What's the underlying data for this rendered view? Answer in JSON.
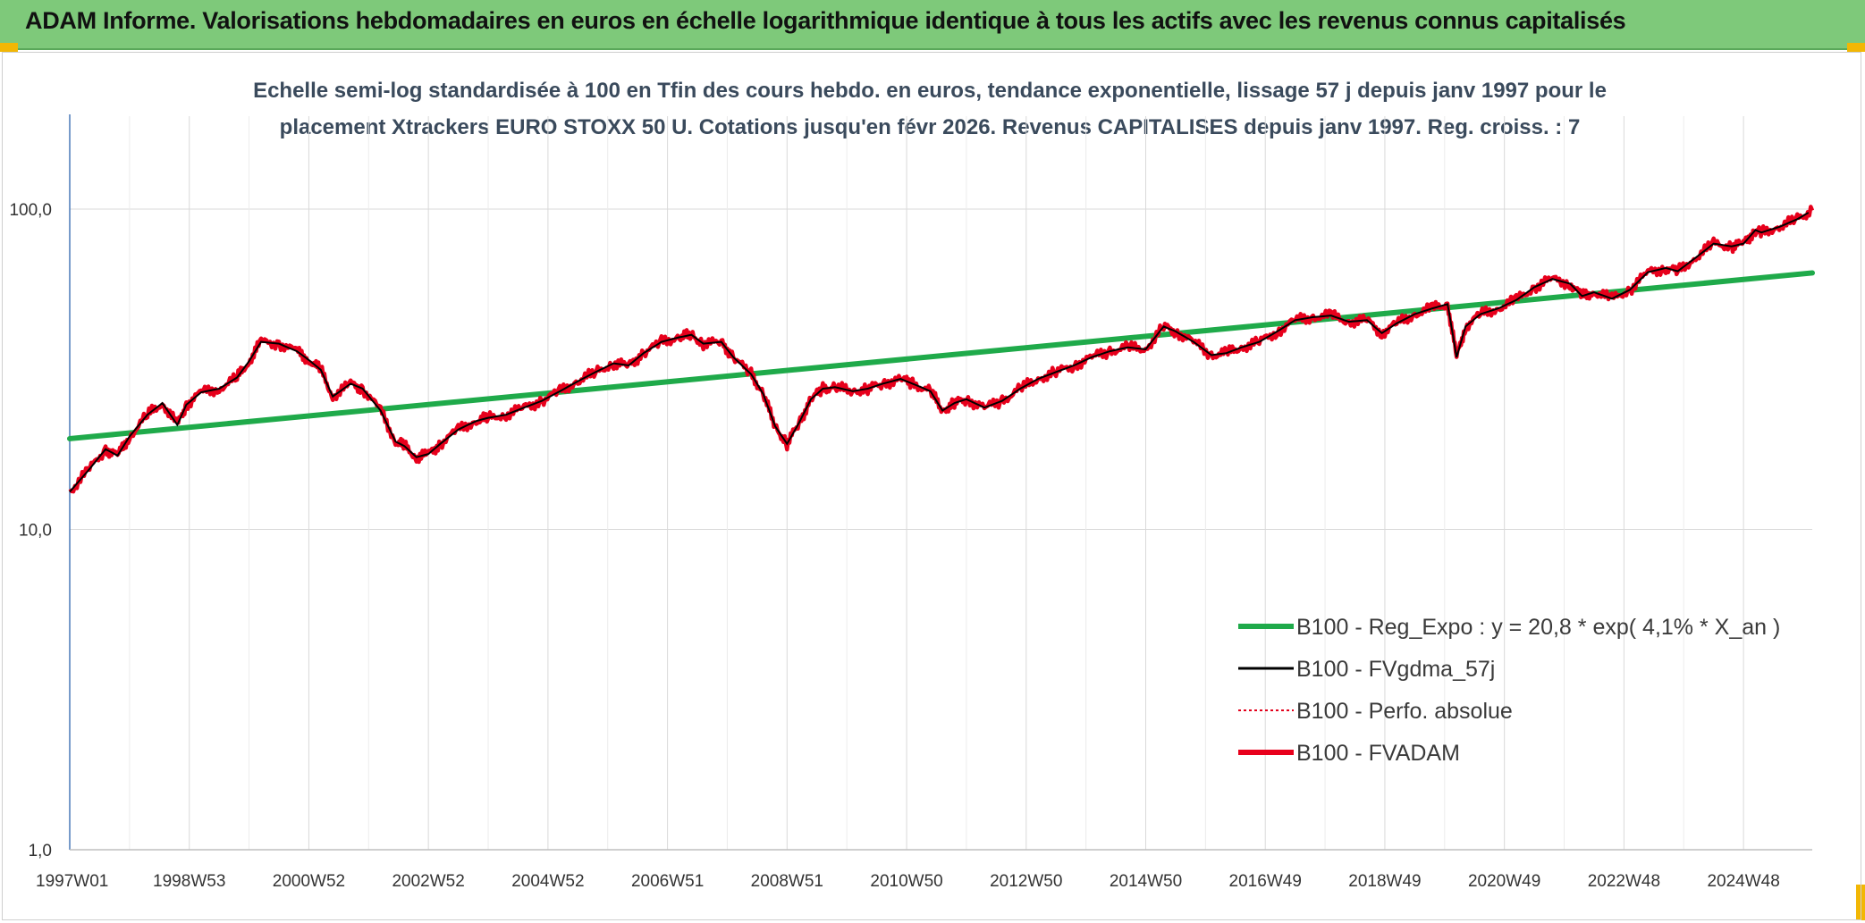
{
  "header": {
    "title": "ADAM Informe. Valorisations hebdomadaires en euros en échelle logarithmique identique à tous les actifs avec les revenus connus capitalisés"
  },
  "colors": {
    "header_bg": "#7ec97a",
    "reg_expo": "#1faa4a",
    "fvgdma": "#000000",
    "perfo": "#e3001b",
    "fvadam": "#e8001c",
    "grid": "#d9d9d9",
    "axis": "#4a7ab8"
  },
  "chart_data": {
    "type": "line",
    "subtitle_line1": "Echelle semi-log standardisée à 100 en Tfin des cours hebdo. en euros, tendance exponentielle, lissage 57 j depuis janv 1997 pour le",
    "subtitle_line2": "placement Xtrackers EURO STOXX 50 U. Cotations jusqu'en févr 2026. Revenus CAPITALISES depuis janv 1997. Reg. croiss. : 7",
    "y_scale": "log",
    "ylim": [
      1,
      100
    ],
    "xlim": [
      1997.0,
      2026.15
    ],
    "grid": true,
    "legend_position": "lower-right",
    "y_ticks": [
      "1,0",
      "10,0",
      "100,0"
    ],
    "x_ticks": [
      "1997W01",
      "1998W53",
      "2000W52",
      "2002W52",
      "2004W52",
      "2006W51",
      "2008W51",
      "2010W50",
      "2012W50",
      "2014W50",
      "2016W49",
      "2018W49",
      "2020W49",
      "2022W48",
      "2024W48"
    ],
    "series": [
      {
        "name": "B100 - Reg_Expo : y = 20,8 * exp( 4,1% *  X_an )",
        "key": "reg",
        "x": [
          1997.0,
          2026.15
        ],
        "y": [
          19.2,
          63.2
        ]
      },
      {
        "name": "B100 - FVgdma_57j",
        "key": "smooth"
      },
      {
        "name": "B100 - Perfo. absolue",
        "key": "perfo"
      },
      {
        "name": "B100 - FVADAM",
        "key": "fvadam",
        "x": [
          1997.0,
          1997.3,
          1997.6,
          1997.8,
          1998.0,
          1998.3,
          1998.55,
          1998.8,
          1998.95,
          1999.2,
          1999.5,
          1999.8,
          2000.0,
          2000.2,
          2000.5,
          2000.8,
          2001.0,
          2001.2,
          2001.4,
          2001.7,
          2001.9,
          2002.2,
          2002.45,
          2002.6,
          2002.8,
          2003.0,
          2003.2,
          2003.5,
          2003.8,
          2004.0,
          2004.3,
          2004.6,
          2004.9,
          2005.2,
          2005.5,
          2005.8,
          2006.1,
          2006.35,
          2006.6,
          2006.9,
          2007.2,
          2007.4,
          2007.6,
          2007.9,
          2008.1,
          2008.4,
          2008.6,
          2008.8,
          2009.0,
          2009.2,
          2009.4,
          2009.6,
          2009.8,
          2010.1,
          2010.35,
          2010.6,
          2010.9,
          2011.1,
          2011.4,
          2011.6,
          2011.8,
          2012.0,
          2012.3,
          2012.6,
          2012.9,
          2013.2,
          2013.5,
          2013.8,
          2014.1,
          2014.4,
          2014.7,
          2015.0,
          2015.3,
          2015.5,
          2015.8,
          2016.1,
          2016.35,
          2016.6,
          2016.9,
          2017.2,
          2017.5,
          2017.8,
          2018.1,
          2018.4,
          2018.7,
          2018.95,
          2019.2,
          2019.5,
          2019.8,
          2020.05,
          2020.2,
          2020.35,
          2020.6,
          2020.9,
          2021.2,
          2021.5,
          2021.8,
          2022.1,
          2022.3,
          2022.5,
          2022.8,
          2023.1,
          2023.4,
          2023.7,
          2023.9,
          2024.2,
          2024.5,
          2024.8,
          2025.0,
          2025.2,
          2025.3,
          2025.6,
          2025.9,
          2026.15
        ],
        "y": [
          13.1,
          15.2,
          17.8,
          17.0,
          19.5,
          22.8,
          24.8,
          21.2,
          24.5,
          26.8,
          27.5,
          29.8,
          33.5,
          38.5,
          38.0,
          36.0,
          33.8,
          31.5,
          26.0,
          28.5,
          27.5,
          23.5,
          18.8,
          18.2,
          16.8,
          17.2,
          18.5,
          20.5,
          21.8,
          22.3,
          22.8,
          24.0,
          25.2,
          27.0,
          29.0,
          31.0,
          33.0,
          32.5,
          35.5,
          38.5,
          39.8,
          40.5,
          38.0,
          38.5,
          34.5,
          30.5,
          26.5,
          21.0,
          18.5,
          21.5,
          25.5,
          27.5,
          27.8,
          27.0,
          27.5,
          28.5,
          29.5,
          28.5,
          27.0,
          23.5,
          24.8,
          25.5,
          24.0,
          25.2,
          27.5,
          29.5,
          31.0,
          32.5,
          34.5,
          36.0,
          37.0,
          36.5,
          43.0,
          41.5,
          38.5,
          35.0,
          35.5,
          37.0,
          38.5,
          41.5,
          45.0,
          46.0,
          46.5,
          44.5,
          45.0,
          41.0,
          44.0,
          47.0,
          49.0,
          50.5,
          34.5,
          43.0,
          47.0,
          49.0,
          52.0,
          57.0,
          60.5,
          58.5,
          53.5,
          55.0,
          52.5,
          56.0,
          63.5,
          65.5,
          64.0,
          70.5,
          78.0,
          76.5,
          78.0,
          86.0,
          84.5,
          88.0,
          93.0,
          99.0
        ]
      }
    ]
  }
}
